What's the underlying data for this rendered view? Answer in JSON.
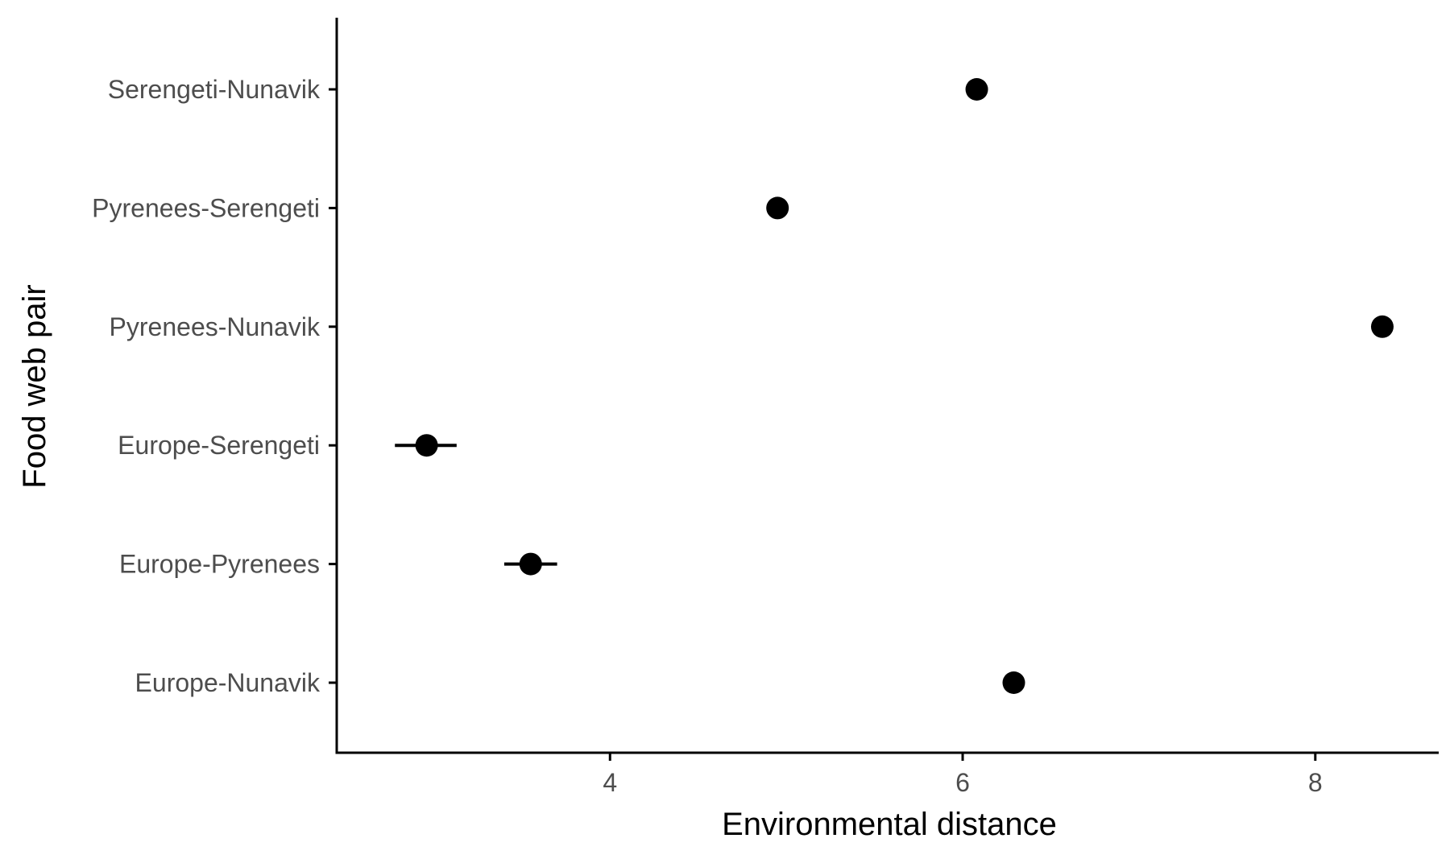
{
  "chart_data": {
    "type": "scatter",
    "title": "",
    "xlabel": "Environmental distance",
    "ylabel": "Food web pair",
    "xlim": [
      2.45,
      8.7
    ],
    "x_ticks": [
      4,
      6,
      8
    ],
    "x_tick_labels": [
      "4",
      "6",
      "8"
    ],
    "categories": [
      "Europe-Nunavik",
      "Europe-Pyrenees",
      "Europe-Serengeti",
      "Pyrenees-Nunavik",
      "Pyrenees-Serengeti",
      "Serengeti-Nunavik"
    ],
    "values": [
      6.29,
      3.55,
      2.96,
      8.38,
      4.95,
      6.08
    ],
    "error_low": [
      6.24,
      3.4,
      2.78,
      8.38,
      4.95,
      6.08
    ],
    "error_high": [
      6.33,
      3.7,
      3.13,
      8.38,
      4.95,
      6.08
    ],
    "grid": false,
    "legend": "none",
    "point_color": "#000000"
  }
}
